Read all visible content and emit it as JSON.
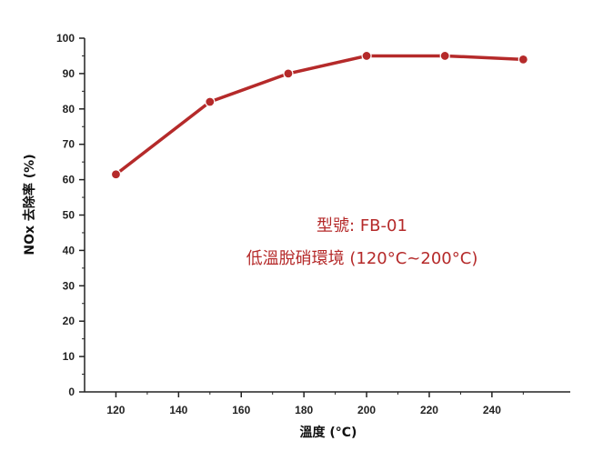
{
  "chart_data": {
    "type": "line",
    "x": [
      120,
      150,
      175,
      200,
      225,
      250
    ],
    "series": [
      {
        "values": [
          61.5,
          82,
          90,
          95,
          95,
          94
        ]
      }
    ],
    "xlabel": "溫度 (°C)",
    "ylabel": "NOx 去除率 (%)",
    "xlim": [
      110,
      265
    ],
    "ylim": [
      0,
      100
    ],
    "xticks": [
      120,
      140,
      160,
      180,
      200,
      220,
      240
    ],
    "yticks": [
      0,
      10,
      20,
      30,
      40,
      50,
      60,
      70,
      80,
      90,
      100
    ],
    "grid": false,
    "annotations": [
      "型號: FB-01",
      "低溫脫硝環境 (120°C~200°C)"
    ],
    "colors": {
      "series": "#b52a2a",
      "annotation": "#b52a2a",
      "axis": "#222222"
    }
  }
}
